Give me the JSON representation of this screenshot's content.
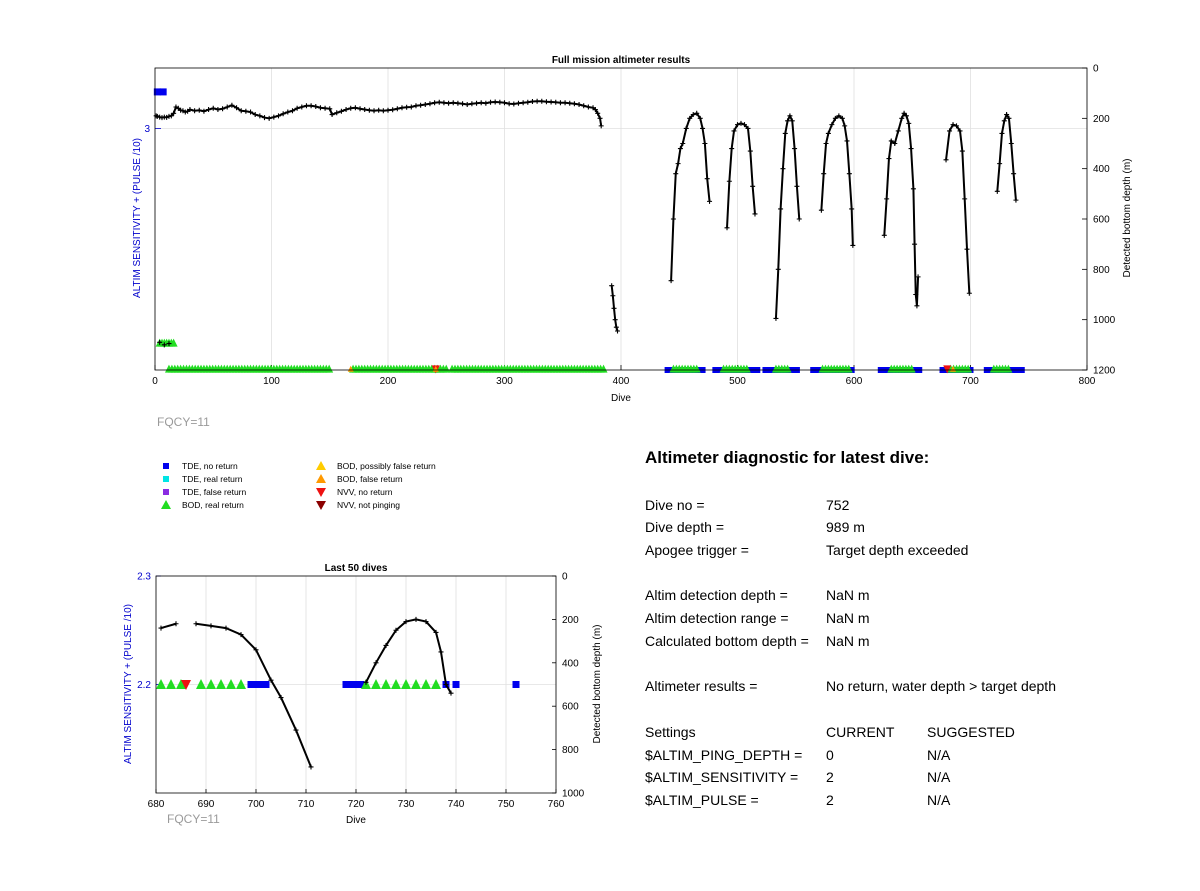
{
  "chart_data": [
    {
      "type": "scatter",
      "title": "Full mission altimeter results",
      "xlabel": "Dive",
      "ylabel_left": "ALTIM SENSITIVITY + (PULSE /10)",
      "ylabel_right": "Detected bottom depth (m)",
      "xlim": [
        0,
        800
      ],
      "ylim_left": [
        2.2,
        3.2
      ],
      "ylim_right": [
        0,
        1200
      ],
      "right_axis_reversed": true,
      "grid": true,
      "x_ticks": [
        "0",
        "100",
        "200",
        "300",
        "400",
        "500",
        "600",
        "700",
        "800"
      ],
      "y_left_ticks": [
        "3"
      ],
      "y_right_ticks": [
        "0",
        "200",
        "400",
        "600",
        "800",
        "1000",
        "1200"
      ],
      "depth_line": [
        [
          1,
          190
        ],
        [
          2,
          192
        ],
        [
          4,
          195
        ],
        [
          6,
          197
        ],
        [
          8,
          195
        ],
        [
          10,
          196
        ],
        [
          12,
          192
        ],
        [
          14,
          190
        ],
        [
          16,
          180
        ],
        [
          18,
          155
        ],
        [
          20,
          160
        ],
        [
          22,
          168
        ],
        [
          24,
          170
        ],
        [
          26,
          175
        ],
        [
          28,
          172
        ],
        [
          30,
          165
        ],
        [
          34,
          170
        ],
        [
          38,
          168
        ],
        [
          42,
          172
        ],
        [
          46,
          165
        ],
        [
          50,
          160
        ],
        [
          54,
          165
        ],
        [
          58,
          162
        ],
        [
          62,
          155
        ],
        [
          66,
          148
        ],
        [
          70,
          158
        ],
        [
          74,
          170
        ],
        [
          78,
          172
        ],
        [
          82,
          175
        ],
        [
          86,
          185
        ],
        [
          90,
          190
        ],
        [
          94,
          197
        ],
        [
          98,
          200
        ],
        [
          102,
          195
        ],
        [
          106,
          190
        ],
        [
          110,
          182
        ],
        [
          114,
          175
        ],
        [
          118,
          170
        ],
        [
          122,
          160
        ],
        [
          126,
          155
        ],
        [
          130,
          150
        ],
        [
          134,
          150
        ],
        [
          138,
          153
        ],
        [
          142,
          158
        ],
        [
          146,
          160
        ],
        [
          150,
          162
        ],
        [
          152,
          185
        ],
        [
          156,
          178
        ],
        [
          160,
          172
        ],
        [
          164,
          165
        ],
        [
          168,
          160
        ],
        [
          172,
          158
        ],
        [
          176,
          162
        ],
        [
          180,
          165
        ],
        [
          184,
          168
        ],
        [
          188,
          170
        ],
        [
          192,
          168
        ],
        [
          196,
          170
        ],
        [
          200,
          168
        ],
        [
          204,
          166
        ],
        [
          208,
          162
        ],
        [
          212,
          158
        ],
        [
          216,
          156
        ],
        [
          220,
          155
        ],
        [
          224,
          150
        ],
        [
          228,
          148
        ],
        [
          232,
          145
        ],
        [
          236,
          142
        ],
        [
          240,
          138
        ],
        [
          244,
          136
        ],
        [
          248,
          138
        ],
        [
          252,
          140
        ],
        [
          256,
          138
        ],
        [
          260,
          140
        ],
        [
          264,
          142
        ],
        [
          268,
          145
        ],
        [
          272,
          142
        ],
        [
          276,
          140
        ],
        [
          280,
          138
        ],
        [
          284,
          140
        ],
        [
          288,
          136
        ],
        [
          292,
          135
        ],
        [
          296,
          136
        ],
        [
          300,
          138
        ],
        [
          304,
          142
        ],
        [
          308,
          143
        ],
        [
          312,
          140
        ],
        [
          316,
          138
        ],
        [
          320,
          136
        ],
        [
          324,
          133
        ],
        [
          328,
          132
        ],
        [
          332,
          132
        ],
        [
          336,
          134
        ],
        [
          340,
          135
        ],
        [
          344,
          136
        ],
        [
          348,
          138
        ],
        [
          352,
          138
        ],
        [
          356,
          140
        ],
        [
          360,
          142
        ],
        [
          364,
          145
        ],
        [
          368,
          150
        ],
        [
          372,
          155
        ],
        [
          376,
          158
        ],
        [
          378,
          165
        ],
        [
          380,
          180
        ],
        [
          382,
          200
        ],
        [
          383,
          230
        ]
      ],
      "depth_drops": [
        [
          [
            392,
            865
          ],
          [
            393,
            905
          ],
          [
            394,
            955
          ],
          [
            395,
            1000
          ],
          [
            396,
            1030
          ],
          [
            397,
            1045
          ]
        ],
        [
          [
            443,
            845
          ],
          [
            445,
            600
          ],
          [
            447,
            420
          ],
          [
            449,
            380
          ],
          [
            451,
            320
          ],
          [
            453,
            300
          ],
          [
            456,
            240
          ],
          [
            459,
            200
          ],
          [
            462,
            185
          ],
          [
            465,
            180
          ],
          [
            468,
            200
          ],
          [
            470,
            240
          ],
          [
            472,
            300
          ],
          [
            474,
            440
          ],
          [
            476,
            530
          ]
        ],
        [
          [
            491,
            635
          ],
          [
            493,
            450
          ],
          [
            495,
            320
          ],
          [
            497,
            250
          ],
          [
            500,
            225
          ],
          [
            503,
            220
          ],
          [
            506,
            225
          ],
          [
            509,
            240
          ],
          [
            511,
            330
          ],
          [
            513,
            470
          ],
          [
            515,
            580
          ]
        ],
        [
          [
            533,
            995
          ],
          [
            535,
            800
          ],
          [
            537,
            560
          ],
          [
            539,
            400
          ],
          [
            541,
            260
          ],
          [
            543,
            210
          ],
          [
            545,
            190
          ],
          [
            547,
            210
          ],
          [
            549,
            320
          ],
          [
            551,
            470
          ],
          [
            553,
            600
          ]
        ],
        [
          [
            572,
            565
          ],
          [
            574,
            420
          ],
          [
            576,
            300
          ],
          [
            578,
            260
          ],
          [
            581,
            225
          ],
          [
            584,
            200
          ],
          [
            587,
            190
          ],
          [
            590,
            200
          ],
          [
            592,
            230
          ],
          [
            594,
            290
          ],
          [
            596,
            420
          ],
          [
            598,
            560
          ],
          [
            599,
            705
          ]
        ],
        [
          [
            626,
            665
          ],
          [
            628,
            520
          ],
          [
            630,
            360
          ],
          [
            632,
            290
          ],
          [
            635,
            300
          ],
          [
            638,
            250
          ],
          [
            641,
            200
          ],
          [
            643,
            180
          ],
          [
            645,
            190
          ],
          [
            647,
            220
          ],
          [
            649,
            320
          ],
          [
            651,
            480
          ],
          [
            652,
            700
          ],
          [
            653,
            900
          ],
          [
            654,
            945
          ],
          [
            655,
            830
          ]
        ],
        [
          [
            679,
            365
          ],
          [
            682,
            250
          ],
          [
            685,
            225
          ],
          [
            688,
            230
          ],
          [
            691,
            250
          ],
          [
            693,
            330
          ],
          [
            695,
            520
          ],
          [
            697,
            720
          ],
          [
            699,
            895
          ]
        ],
        [
          [
            723,
            490
          ],
          [
            725,
            380
          ],
          [
            727,
            260
          ],
          [
            729,
            210
          ],
          [
            731,
            185
          ],
          [
            733,
            200
          ],
          [
            735,
            300
          ],
          [
            737,
            420
          ],
          [
            739,
            525
          ]
        ]
      ],
      "depth_points": [
        [
          4,
          1090
        ],
        [
          8,
          1100
        ],
        [
          12,
          1095
        ]
      ],
      "tde_no_return_segments": [
        [
          0,
          10
        ],
        [
          440,
          472
        ],
        [
          481,
          518
        ],
        [
          524,
          552
        ],
        [
          565,
          600
        ],
        [
          623,
          658
        ],
        [
          676,
          702
        ],
        [
          714,
          744
        ]
      ],
      "bod_real_segments": [
        [
          12,
          150
        ],
        [
          170,
          250
        ],
        [
          255,
          385
        ],
        [
          445,
          465
        ],
        [
          488,
          508
        ],
        [
          533,
          543
        ],
        [
          573,
          597
        ],
        [
          632,
          650
        ],
        [
          683,
          699
        ],
        [
          720,
          733
        ]
      ],
      "nvv_no_return": [
        241,
        680
      ],
      "bod_false_marks": [
        168,
        241,
        685
      ]
    },
    {
      "type": "scatter",
      "title": "Last 50 dives",
      "xlabel": "Dive",
      "ylabel_left": "ALTIM SENSITIVITY + (PULSE /10)",
      "ylabel_right": "Detected bottom depth (m)",
      "xlim": [
        680,
        760
      ],
      "ylim_left": [
        2.1,
        2.3
      ],
      "ylim_right": [
        0,
        1000
      ],
      "right_axis_reversed": true,
      "grid": true,
      "x_ticks": [
        "680",
        "690",
        "700",
        "710",
        "720",
        "730",
        "740",
        "750",
        "760"
      ],
      "y_left_ticks": [
        "2.3",
        "2.2"
      ],
      "y_right_ticks": [
        "0",
        "200",
        "400",
        "600",
        "800",
        "1000"
      ],
      "depth_segments": [
        [
          [
            681,
            240
          ],
          [
            684,
            220
          ]
        ],
        [
          [
            688,
            220
          ],
          [
            691,
            230
          ],
          [
            694,
            240
          ],
          [
            697,
            270
          ],
          [
            700,
            340
          ],
          [
            703,
            480
          ],
          [
            705,
            560
          ],
          [
            708,
            710
          ],
          [
            711,
            880
          ]
        ],
        [
          [
            722,
            490
          ],
          [
            724,
            400
          ],
          [
            726,
            320
          ],
          [
            728,
            250
          ],
          [
            730,
            210
          ],
          [
            732,
            200
          ],
          [
            734,
            210
          ],
          [
            736,
            260
          ],
          [
            737,
            350
          ],
          [
            738,
            500
          ],
          [
            739,
            540
          ]
        ]
      ],
      "tde_no_return": [
        699,
        700,
        701,
        702,
        718,
        719,
        720,
        721,
        738,
        740,
        752
      ],
      "bod_real_return": [
        681,
        683,
        685,
        689,
        691,
        693,
        695,
        697,
        722,
        724,
        726,
        728,
        730,
        732,
        734,
        736
      ],
      "nvv_no_return": [
        686
      ]
    }
  ],
  "labels": {
    "top_fqcy": "FQCY=11",
    "bottom_fqcy": "FQCY=11"
  },
  "legend": {
    "items": [
      {
        "label": "TDE, no return",
        "color": "#0000ee",
        "shape": "square"
      },
      {
        "label": "TDE, real return",
        "color": "#00e5e5",
        "shape": "square"
      },
      {
        "label": "TDE, false return",
        "color": "#8a2be2",
        "shape": "square"
      },
      {
        "label": "BOD, real return",
        "color": "#22dd22",
        "shape": "triangle-up"
      },
      {
        "label": "BOD, possibly false return",
        "color": "#ffcc00",
        "shape": "triangle-up"
      },
      {
        "label": "BOD, false return",
        "color": "#ff9900",
        "shape": "triangle-up"
      },
      {
        "label": "NVV, no return",
        "color": "#ee1111",
        "shape": "triangle-down"
      },
      {
        "label": "NVV, not pinging",
        "color": "#8b0000",
        "shape": "triangle-down"
      }
    ]
  },
  "diagnostic": {
    "title": "Altimeter diagnostic for latest dive:",
    "dive_no_label": "Dive no =",
    "dive_no_value": "752",
    "dive_depth_label": "Dive depth =",
    "dive_depth_value": "989 m",
    "apogee_label": "Apogee trigger =",
    "apogee_value": "Target depth exceeded",
    "altim_depth_label": "Altim detection depth =",
    "altim_depth_value": "NaN m",
    "altim_range_label": "Altim detection range =",
    "altim_range_value": "NaN m",
    "calc_bottom_label": "Calculated bottom depth =",
    "calc_bottom_value": "NaN m",
    "results_label": "Altimeter results =",
    "results_value": "No return, water depth > target depth",
    "settings_label": "Settings",
    "current_label": "CURRENT",
    "suggested_label": "SUGGESTED",
    "settings": [
      {
        "name": "$ALTIM_PING_DEPTH =",
        "current": "0",
        "suggested": "N/A"
      },
      {
        "name": "$ALTIM_SENSITIVITY =",
        "current": "2",
        "suggested": "N/A"
      },
      {
        "name": "$ALTIM_PULSE =",
        "current": "2",
        "suggested": "N/A"
      }
    ]
  },
  "colors": {
    "axis_left": "#0000cc",
    "tde_no_return": "#0000ee",
    "bod_real_return": "#22dd22",
    "nvv_no_return": "#ee1111",
    "depth_line": "#000000",
    "grid": "#e0e0e0",
    "fqcy_text": "#9a9a9a"
  }
}
